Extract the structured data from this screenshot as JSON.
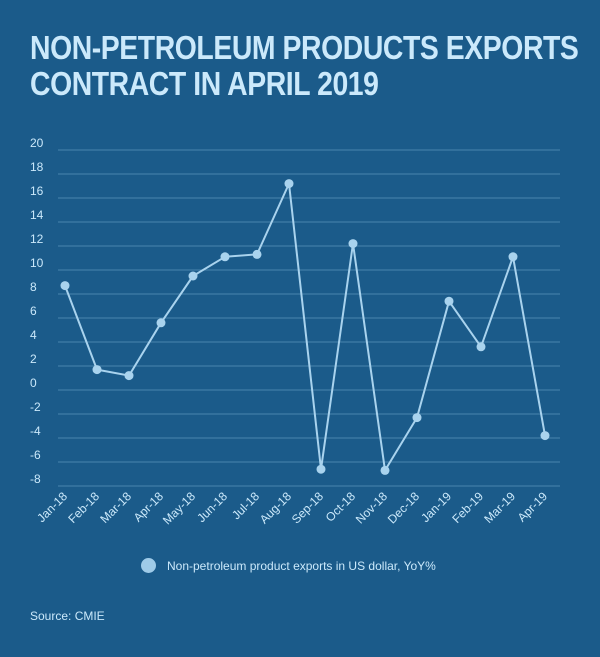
{
  "title_lines": [
    "NON-PETROLEUM PRODUCTS EXPORTS",
    "CONTRACT IN APRIL 2019"
  ],
  "source": "Source: CMIE",
  "legend_label": "Non-petroleum product exports in US dollar, YoY%",
  "colors": {
    "background": "#1b5b8a",
    "line": "#a9d3ee",
    "point": "#a9d3ee",
    "text": "#cbe9fb",
    "grid": "#4a84ad"
  },
  "chart_data": {
    "type": "line",
    "title": "NON-PETROLEUM PRODUCTS EXPORTS CONTRACT IN APRIL 2019",
    "xlabel": "",
    "ylabel": "",
    "ylim": [
      -8,
      20
    ],
    "yticks": [
      20,
      18,
      16,
      14,
      12,
      10,
      8,
      6,
      4,
      2,
      0,
      -2,
      -4,
      -6,
      -8
    ],
    "grid": true,
    "legend_position": "bottom",
    "categories": [
      "Jan-18",
      "Feb-18",
      "Mar-18",
      "Apr-18",
      "May-18",
      "Jun-18",
      "Jul-18",
      "Aug-18",
      "Sep-18",
      "Oct-18",
      "Nov-18",
      "Dec-18",
      "Jan-19",
      "Feb-19",
      "Mar-19",
      "Apr-19"
    ],
    "series": [
      {
        "name": "Non-petroleum product exports in US dollar, YoY%",
        "values": [
          8.7,
          1.7,
          1.2,
          5.6,
          9.5,
          11.1,
          11.3,
          17.2,
          -6.6,
          12.2,
          -6.7,
          -2.3,
          7.4,
          3.6,
          11.1,
          -3.8
        ]
      }
    ]
  }
}
